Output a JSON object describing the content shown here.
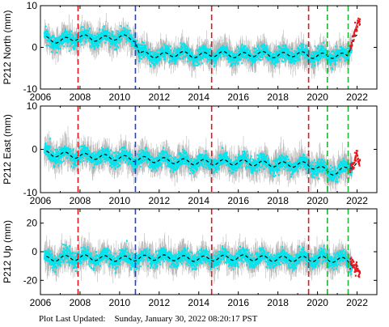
{
  "footer": {
    "label": "Plot Last Updated:",
    "timestamp": "Sunday, January 30, 2022 08:20:17 PST"
  },
  "colors": {
    "scatter": "#00e5ee",
    "error_bars": "#b8b8b8",
    "model": "#000000",
    "recent": "#e8141b",
    "line_red": "#e8141b",
    "line_blue": "#1a3fe6",
    "line_green": "#22b33a"
  },
  "chart_data": [
    {
      "type": "scatter",
      "component": "north",
      "ylabel": "P212 North (mm)",
      "xlim": [
        2006,
        2023
      ],
      "ylim": [
        -10,
        10
      ],
      "xticks": [
        2006,
        2008,
        2010,
        2012,
        2014,
        2016,
        2018,
        2020,
        2022
      ],
      "yticks": [
        -10,
        0,
        10
      ],
      "event_lines": [
        {
          "x": 2007.9,
          "color": "red"
        },
        {
          "x": 2010.8,
          "color": "blue"
        },
        {
          "x": 2014.65,
          "color": "red"
        },
        {
          "x": 2019.55,
          "color": "red"
        },
        {
          "x": 2020.5,
          "color": "green"
        },
        {
          "x": 2021.55,
          "color": "green"
        }
      ],
      "series": [
        {
          "x": [
            2006.3,
            2007.0,
            2008.0,
            2009.0,
            2010.0,
            2010.8,
            2011.0,
            2012.0,
            2013.0,
            2014.0,
            2015.0,
            2016.0,
            2017.0,
            2018.0,
            2019.0,
            2019.6,
            2020.5,
            2021.5,
            2021.9
          ],
          "values": [
            2,
            1.5,
            2.5,
            2,
            2.5,
            2,
            -1.5,
            -2,
            -1.5,
            -2,
            -1.5,
            -2,
            -1.5,
            -2,
            -1.5,
            -2,
            -2,
            -2,
            3
          ]
        }
      ],
      "recent": {
        "x": [
          2021.7,
          2021.8,
          2021.9,
          2022.0,
          2022.05
        ],
        "values": [
          0,
          2,
          4,
          5,
          6
        ]
      }
    },
    {
      "type": "scatter",
      "component": "east",
      "ylabel": "P212 East (mm)",
      "xlim": [
        2006,
        2023
      ],
      "ylim": [
        -10,
        10
      ],
      "xticks": [
        2006,
        2008,
        2010,
        2012,
        2014,
        2016,
        2018,
        2020,
        2022
      ],
      "yticks": [
        -10,
        0,
        10
      ],
      "event_lines": [
        {
          "x": 2007.9,
          "color": "red"
        },
        {
          "x": 2010.8,
          "color": "blue"
        },
        {
          "x": 2014.65,
          "color": "red"
        },
        {
          "x": 2019.55,
          "color": "red"
        },
        {
          "x": 2020.5,
          "color": "green"
        },
        {
          "x": 2021.55,
          "color": "green"
        }
      ],
      "series": [
        {
          "x": [
            2006.3,
            2008.0,
            2010.0,
            2012.0,
            2014.0,
            2016.0,
            2018.0,
            2019.5,
            2020.5,
            2021.0,
            2021.6,
            2022.0
          ],
          "values": [
            -1,
            -1.5,
            -2,
            -2.5,
            -3,
            -3,
            -3.5,
            -3.5,
            -5,
            -5.5,
            -4,
            -3
          ]
        }
      ],
      "recent": {
        "x": [
          2021.8,
          2021.9,
          2022.0,
          2022.05
        ],
        "values": [
          -4,
          -2,
          -1,
          -3
        ]
      }
    },
    {
      "type": "scatter",
      "component": "up",
      "ylabel": "P212 Up (mm)",
      "xlim": [
        2006,
        2023
      ],
      "ylim": [
        -30,
        30
      ],
      "xticks": [
        2006,
        2008,
        2010,
        2012,
        2014,
        2016,
        2018,
        2020,
        2022
      ],
      "yticks": [
        -20,
        0,
        20
      ],
      "event_lines": [
        {
          "x": 2007.9,
          "color": "red"
        },
        {
          "x": 2010.8,
          "color": "blue"
        },
        {
          "x": 2014.65,
          "color": "red"
        },
        {
          "x": 2019.55,
          "color": "red"
        },
        {
          "x": 2020.5,
          "color": "green"
        },
        {
          "x": 2021.55,
          "color": "green"
        }
      ],
      "series": [
        {
          "x": [
            2006.3,
            2008.0,
            2010.0,
            2012.0,
            2014.0,
            2016.0,
            2018.0,
            2020.0,
            2021.5,
            2022.0
          ],
          "values": [
            -5,
            -4,
            -5,
            -4,
            -5,
            -4,
            -5,
            -5,
            -6,
            -10
          ]
        }
      ],
      "recent": {
        "x": [
          2021.8,
          2021.9,
          2022.0,
          2022.05
        ],
        "values": [
          -8,
          -12,
          -10,
          -15
        ]
      }
    }
  ]
}
